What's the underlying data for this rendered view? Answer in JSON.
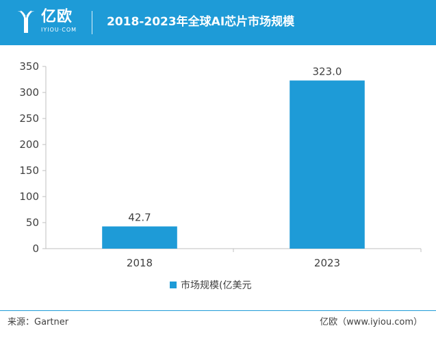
{
  "header": {
    "logo_text": "亿欧",
    "logo_sub": "IYIOU·COM",
    "title": "2018-2023年全球AI芯片市场规模"
  },
  "chart_data": {
    "type": "bar",
    "title": "2018-2023年全球AI芯片市场规模",
    "categories": [
      "2018",
      "2023"
    ],
    "series": [
      {
        "name": "市场规模(亿美元",
        "values": [
          42.7,
          323.0
        ]
      }
    ],
    "data_labels": [
      "42.7",
      "323.0"
    ],
    "ylim": [
      0,
      350
    ],
    "yticks": [
      0,
      50,
      100,
      150,
      200,
      250,
      300,
      350
    ],
    "xlabel": "",
    "ylabel": "",
    "grid": false,
    "legend": "bottom",
    "color": "#1e9bd7"
  },
  "footer": {
    "source": "来源：Gartner",
    "brand": "亿欧（www.iyiou.com）"
  }
}
